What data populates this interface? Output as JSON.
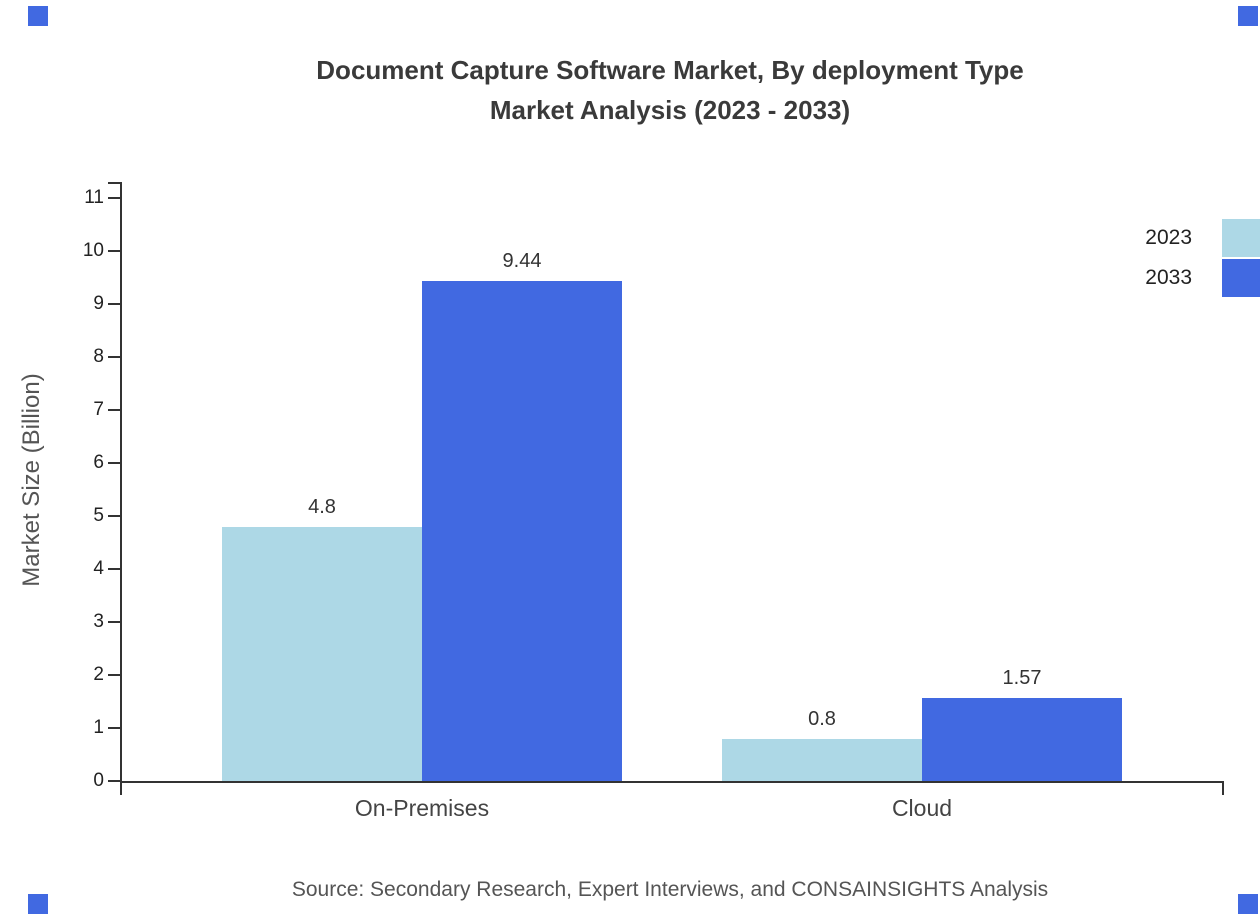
{
  "title": {
    "line1": "Document Capture Software Market, By deployment Type",
    "line2": "Market Analysis (2023 - 2033)"
  },
  "footer": {
    "source": "Source: Secondary Research, Expert Interviews, and CONSAINSIGHTS Analysis"
  },
  "colors": {
    "accent": "#4169E1",
    "series_2023": "#ADD8E6",
    "series_2033": "#4169E1",
    "axis": "#333333"
  },
  "chart_data": {
    "type": "bar",
    "title": "Document Capture Software Market, By deployment Type Market Analysis (2023 - 2033)",
    "categories": [
      "On-Premises",
      "Cloud"
    ],
    "series": [
      {
        "name": "2023",
        "color": "#ADD8E6",
        "values": [
          4.8,
          0.8
        ]
      },
      {
        "name": "2033",
        "color": "#4169E1",
        "values": [
          9.44,
          1.57
        ]
      }
    ],
    "value_labels": [
      [
        "4.8",
        "0.8"
      ],
      [
        "9.44",
        "1.57"
      ]
    ],
    "xlabel": "",
    "ylabel": "Market Size (Billion)",
    "ylim": [
      0,
      11
    ],
    "ytick_step": 1,
    "legend": [
      "2023",
      "2033"
    ],
    "legend_position": "top-right",
    "grid": false
  }
}
